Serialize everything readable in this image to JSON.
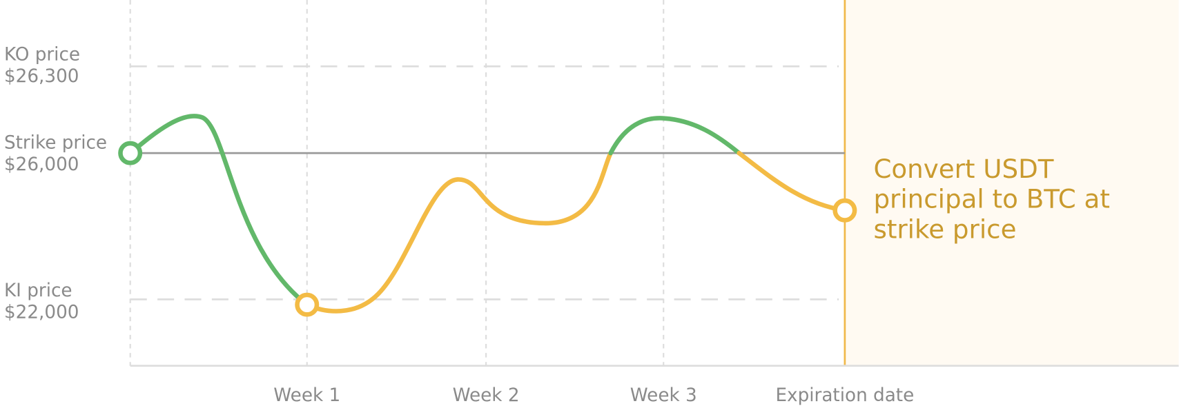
{
  "y_labels": [
    {
      "name": "KO price",
      "value": "$26,300"
    },
    {
      "name": "Strike price",
      "value": "$26,000"
    },
    {
      "name": "KI price",
      "value": "$22,000"
    }
  ],
  "x_labels": [
    "Week 1",
    "Week 2",
    "Week 3",
    "Expiration date"
  ],
  "annotation": {
    "lines": [
      "Convert USDT",
      "principal to BTC at",
      "strike price"
    ]
  }
}
